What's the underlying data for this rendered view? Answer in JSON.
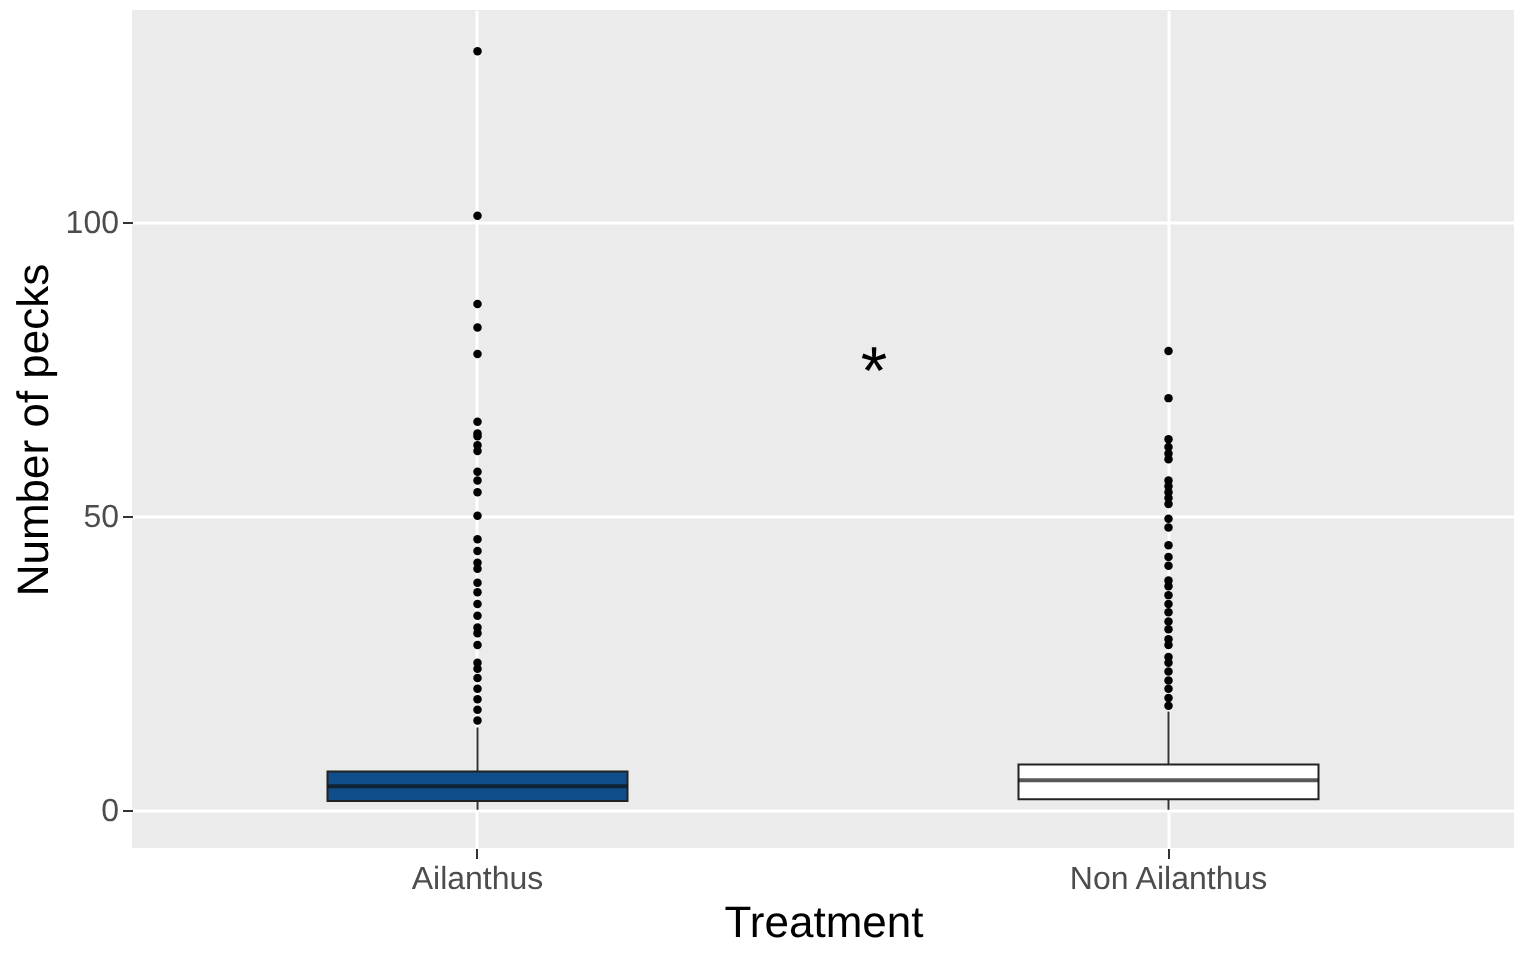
{
  "chart_data": {
    "type": "box",
    "xlabel": "Treatment",
    "ylabel": "Number of pecks",
    "categories": [
      "Ailanthus",
      "Non Ailanthus"
    ],
    "series": [
      {
        "colors": [
          "#104e8b",
          "#ffffff"
        ],
        "boxes": [
          {
            "low": 0,
            "q1": 1.5,
            "median": 4,
            "q3": 6.5,
            "high": 14,
            "outliers": [
              129,
              101,
              86,
              82,
              77.5,
              66,
              64,
              63.5,
              62,
              61,
              57.5,
              56,
              54,
              50,
              46,
              44,
              42,
              41,
              38.6,
              37,
              35,
              33,
              31,
              30,
              28,
              25,
              24,
              22.4,
              20.6,
              18.8,
              17,
              15.2
            ]
          },
          {
            "low": 0,
            "q1": 1.8,
            "median": 5,
            "q3": 7.7,
            "high": 16.7,
            "outliers": [
              78,
              70,
              63,
              61.7,
              60.6,
              59.6,
              56,
              55,
              54,
              53,
              52,
              49.5,
              48,
              45,
              43,
              41.5,
              39,
              38,
              36.5,
              35,
              33.6,
              32,
              30.7,
              29,
              28,
              26,
              25,
              23.5,
              22,
              20.6,
              19,
              17.7
            ]
          }
        ]
      }
    ],
    "ylim": [
      -6.5,
      136
    ],
    "yticks": [
      0,
      50,
      100
    ],
    "grid": true,
    "annotations": [
      "*"
    ]
  }
}
